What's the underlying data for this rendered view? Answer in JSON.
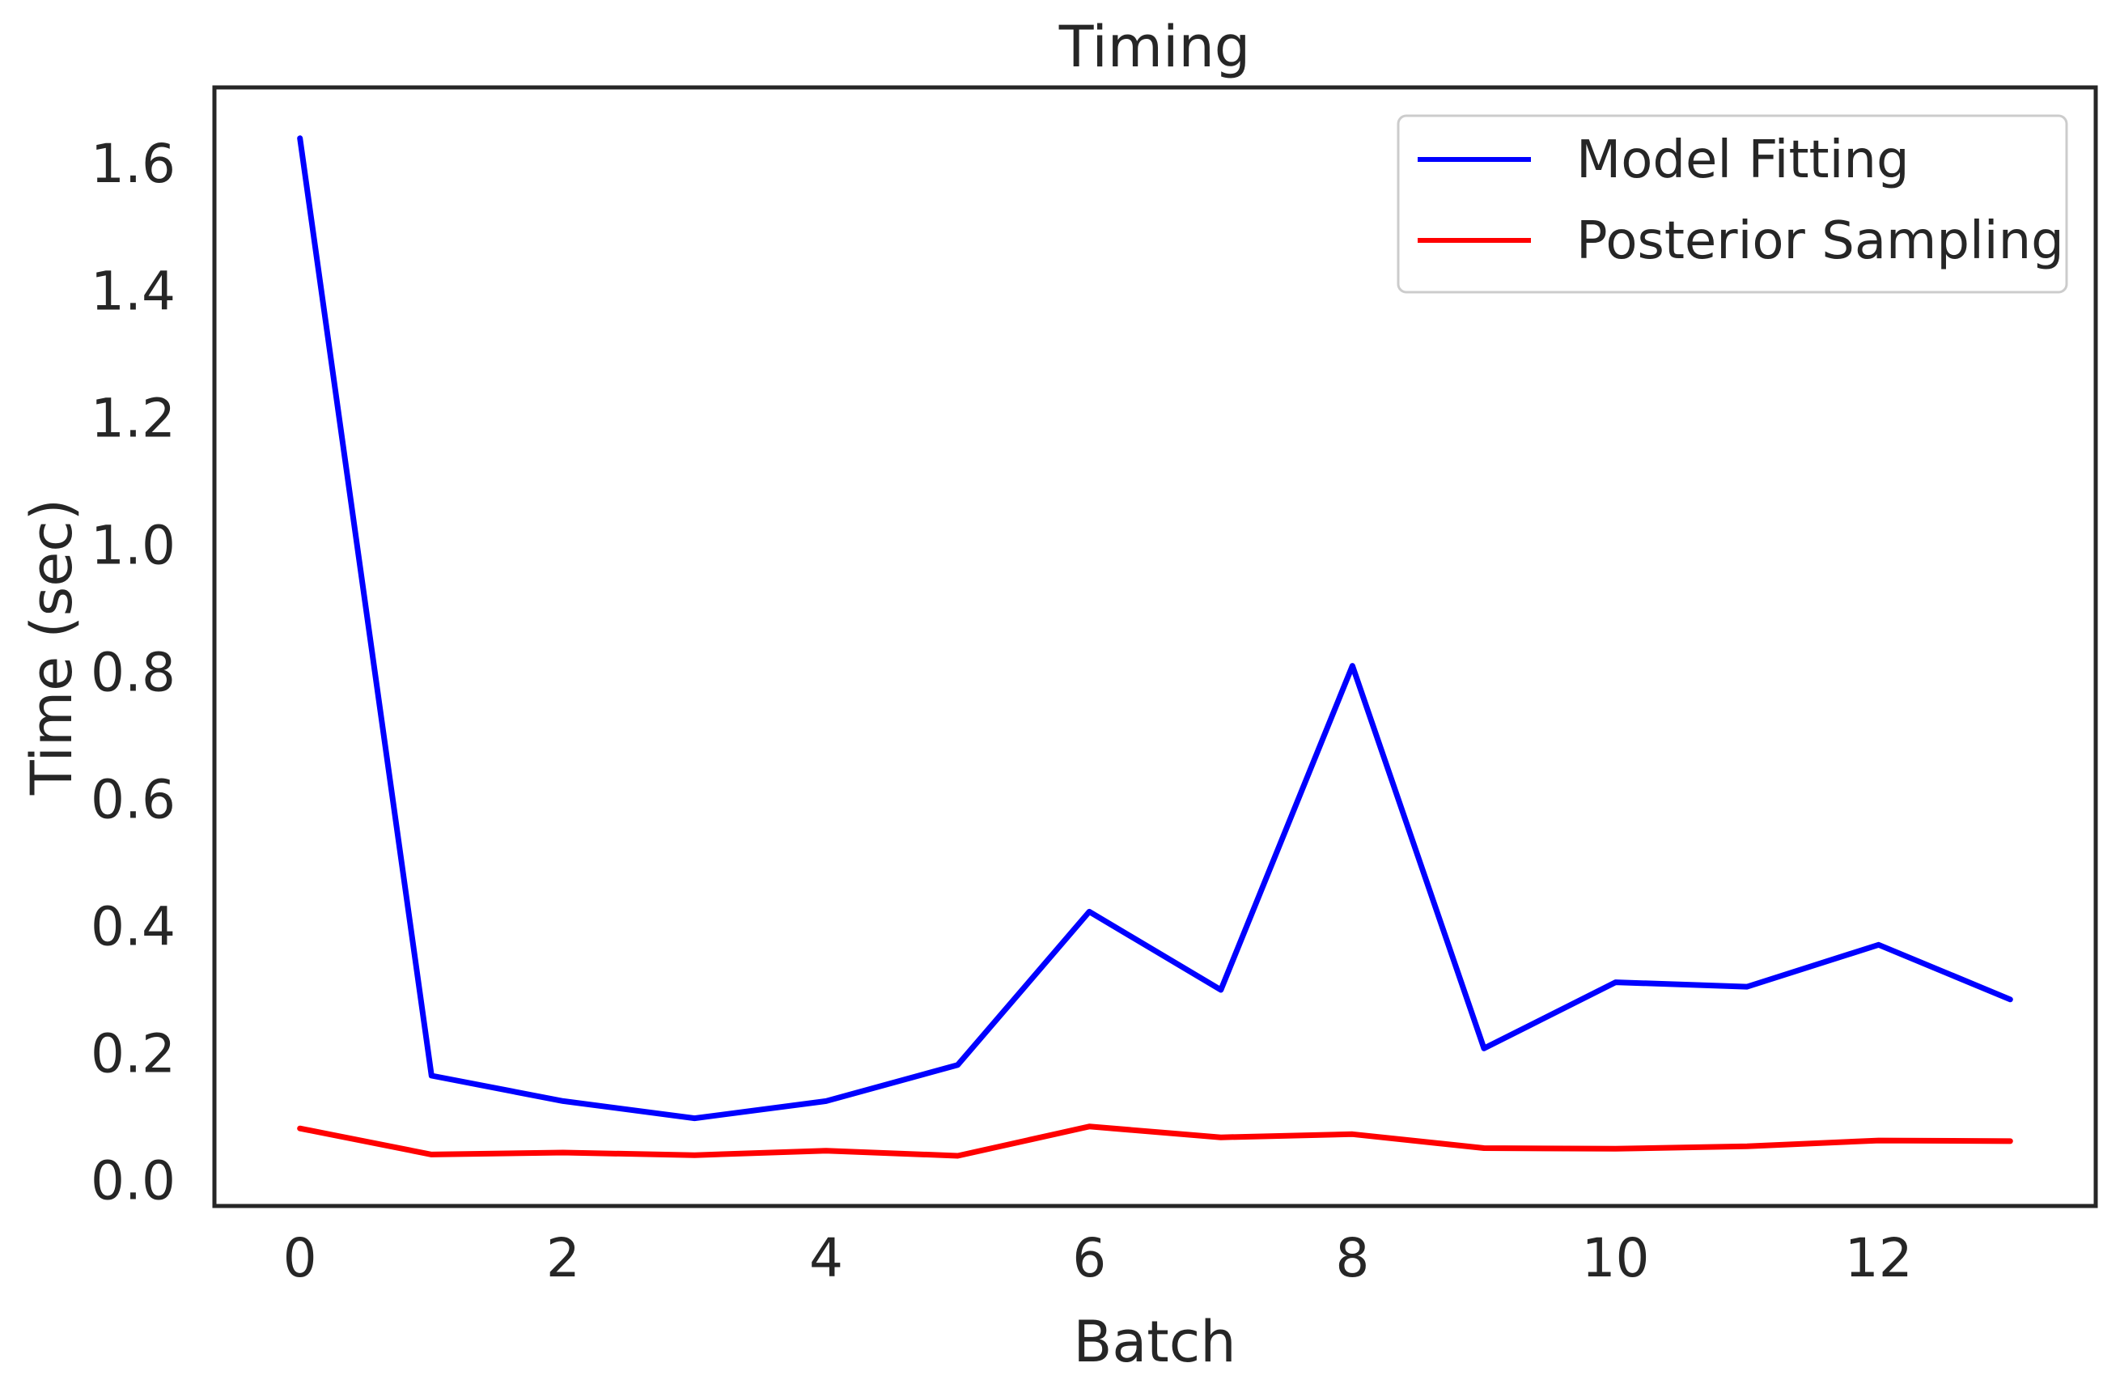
{
  "chart_data": {
    "type": "line",
    "title": "Timing",
    "xlabel": "Batch",
    "ylabel": "Time (sec)",
    "x": [
      0,
      1,
      2,
      3,
      4,
      5,
      6,
      7,
      8,
      9,
      10,
      11,
      12,
      13
    ],
    "xlim": [
      -0.65,
      13.65
    ],
    "ylim": [
      -0.04,
      1.72
    ],
    "xticks": [
      0,
      2,
      4,
      6,
      8,
      10,
      12
    ],
    "xtick_labels": [
      "0",
      "2",
      "4",
      "6",
      "8",
      "10",
      "12"
    ],
    "yticks": [
      0.0,
      0.2,
      0.4,
      0.6,
      0.8,
      1.0,
      1.2,
      1.4,
      1.6
    ],
    "ytick_labels": [
      "0.0",
      "0.2",
      "0.4",
      "0.6",
      "0.8",
      "1.0",
      "1.2",
      "1.4",
      "1.6"
    ],
    "grid": false,
    "legend_position": "top-right",
    "series": [
      {
        "name": "Model Fitting",
        "color": "#0000ff",
        "values": [
          1.64,
          0.165,
          0.125,
          0.098,
          0.125,
          0.182,
          0.423,
          0.3,
          0.81,
          0.208,
          0.312,
          0.305,
          0.371,
          0.285
        ]
      },
      {
        "name": "Posterior Sampling",
        "color": "#ff0000",
        "values": [
          0.082,
          0.041,
          0.044,
          0.04,
          0.047,
          0.039,
          0.085,
          0.068,
          0.073,
          0.051,
          0.05,
          0.054,
          0.063,
          0.062
        ]
      }
    ]
  }
}
